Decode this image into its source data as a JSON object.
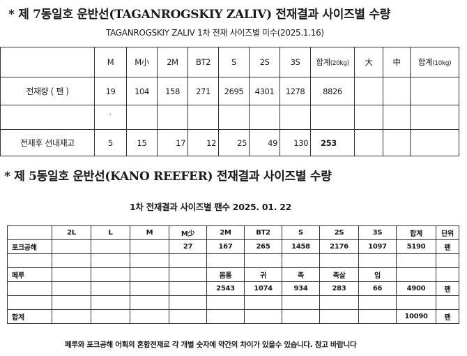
{
  "section1": {
    "heading": "* 제 7동일호 운반선(TAGANROGSKIY ZALIV) 전재결과 사이즈별 수량",
    "subtitle": "TAGANROGSKIY ZALIV 1차 전재 사이즈별 미수(2025.1.16)",
    "table": {
      "headers": [
        "",
        "M",
        "M小",
        "2M",
        "BT2",
        "S",
        "2S",
        "3S",
        "합계",
        "(20kg)",
        "大",
        "中",
        "합계",
        "(10kg)"
      ],
      "rows": [
        {
          "label": "전재량 ( 팬 )",
          "cells": [
            "19",
            "104",
            "158",
            "271",
            "2695",
            "4301",
            "1278",
            "8826",
            "",
            "",
            ""
          ]
        },
        {
          "label": "",
          "cells": [
            "`",
            "",
            "",
            "",
            "",
            "",
            "",
            "",
            "",
            "",
            ""
          ]
        },
        {
          "label": "전재후 선내재고",
          "cells": [
            "5",
            "15",
            "17",
            "12",
            "25",
            "49",
            "130",
            "253",
            "",
            "",
            ""
          ]
        }
      ]
    }
  },
  "section2": {
    "heading": "* 제 5동일호 운반선(KANO REEFER) 전재결과 사이즈별 수량",
    "subtitle": "1차 전재결과 사이즈별  팬수   2025. 01. 22",
    "table": {
      "headers": [
        "",
        "2L",
        "L",
        "M",
        "M少",
        "2M",
        "BT2",
        "S",
        "2S",
        "3S",
        "합계",
        "단위"
      ],
      "rows": [
        [
          "포크공해",
          "",
          "",
          "",
          "27",
          "167",
          "265",
          "1458",
          "2176",
          "1097",
          "5190",
          "팬"
        ],
        [
          "",
          "",
          "",
          "",
          "",
          "",
          "",
          "",
          "",
          "",
          "",
          ""
        ],
        [
          "페루",
          "",
          "",
          "",
          "",
          "몸통",
          "귀",
          "족",
          "족살",
          "입",
          "",
          ""
        ],
        [
          "",
          "",
          "",
          "",
          "",
          "2543",
          "1074",
          "934",
          "283",
          "66",
          "4900",
          "팬"
        ],
        [
          "",
          "",
          "",
          "",
          "",
          "",
          "",
          "",
          "",
          "",
          "",
          ""
        ],
        [
          "합계",
          "",
          "",
          "",
          "",
          "",
          "",
          "",
          "",
          "",
          "10090",
          "팬"
        ]
      ]
    },
    "footer": "페루와 포크공해 어획의 혼합전재로 각 개별 숫자에 약간의 차이가 있을수 있습니다. 참고 바랍니다"
  }
}
